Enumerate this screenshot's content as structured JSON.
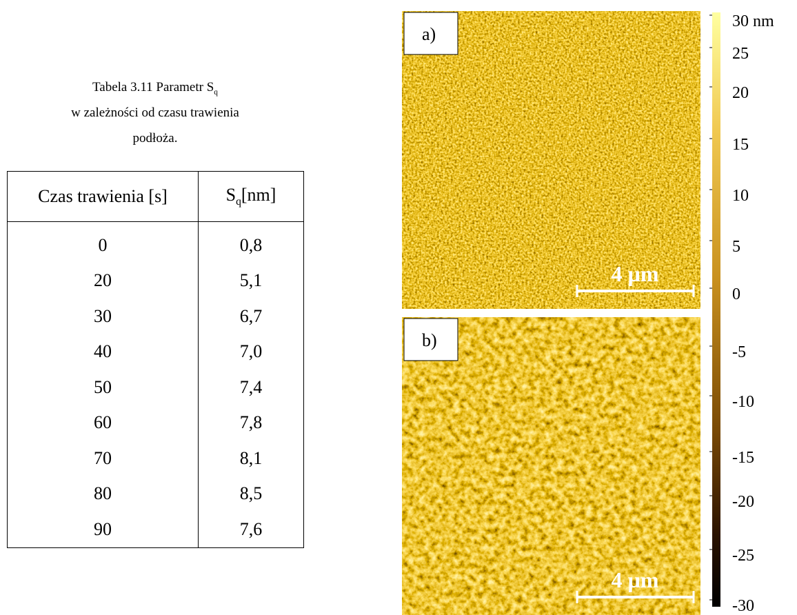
{
  "caption": {
    "line1": "Tabela 3.11 Parametr S",
    "line1_sub": "q",
    "line2": "w zależności od czasu trawienia",
    "line3": "podłoża."
  },
  "table": {
    "header": {
      "col1": "Czas trawienia [s]",
      "col2": "S",
      "col2_sub": "q",
      "col2_rest": "[nm]"
    },
    "rows": [
      [
        "0",
        "0,8"
      ],
      [
        "20",
        "5,1"
      ],
      [
        "30",
        "6,7"
      ],
      [
        "40",
        "7,0"
      ],
      [
        "50",
        "7,4"
      ],
      [
        "60",
        "7,8"
      ],
      [
        "70",
        "8,1"
      ],
      [
        "80",
        "8,5"
      ],
      [
        "90",
        "7,6"
      ]
    ]
  },
  "images": [
    {
      "label": "a)",
      "scale": "4 µm"
    },
    {
      "label": "b)",
      "scale": "4 µm"
    }
  ],
  "colorbar": {
    "labels": [
      "30 nm",
      "25",
      "20",
      "15",
      "10",
      "5",
      "0",
      "-5",
      "-10",
      "-15",
      "-20",
      "-25",
      "-30"
    ]
  }
}
